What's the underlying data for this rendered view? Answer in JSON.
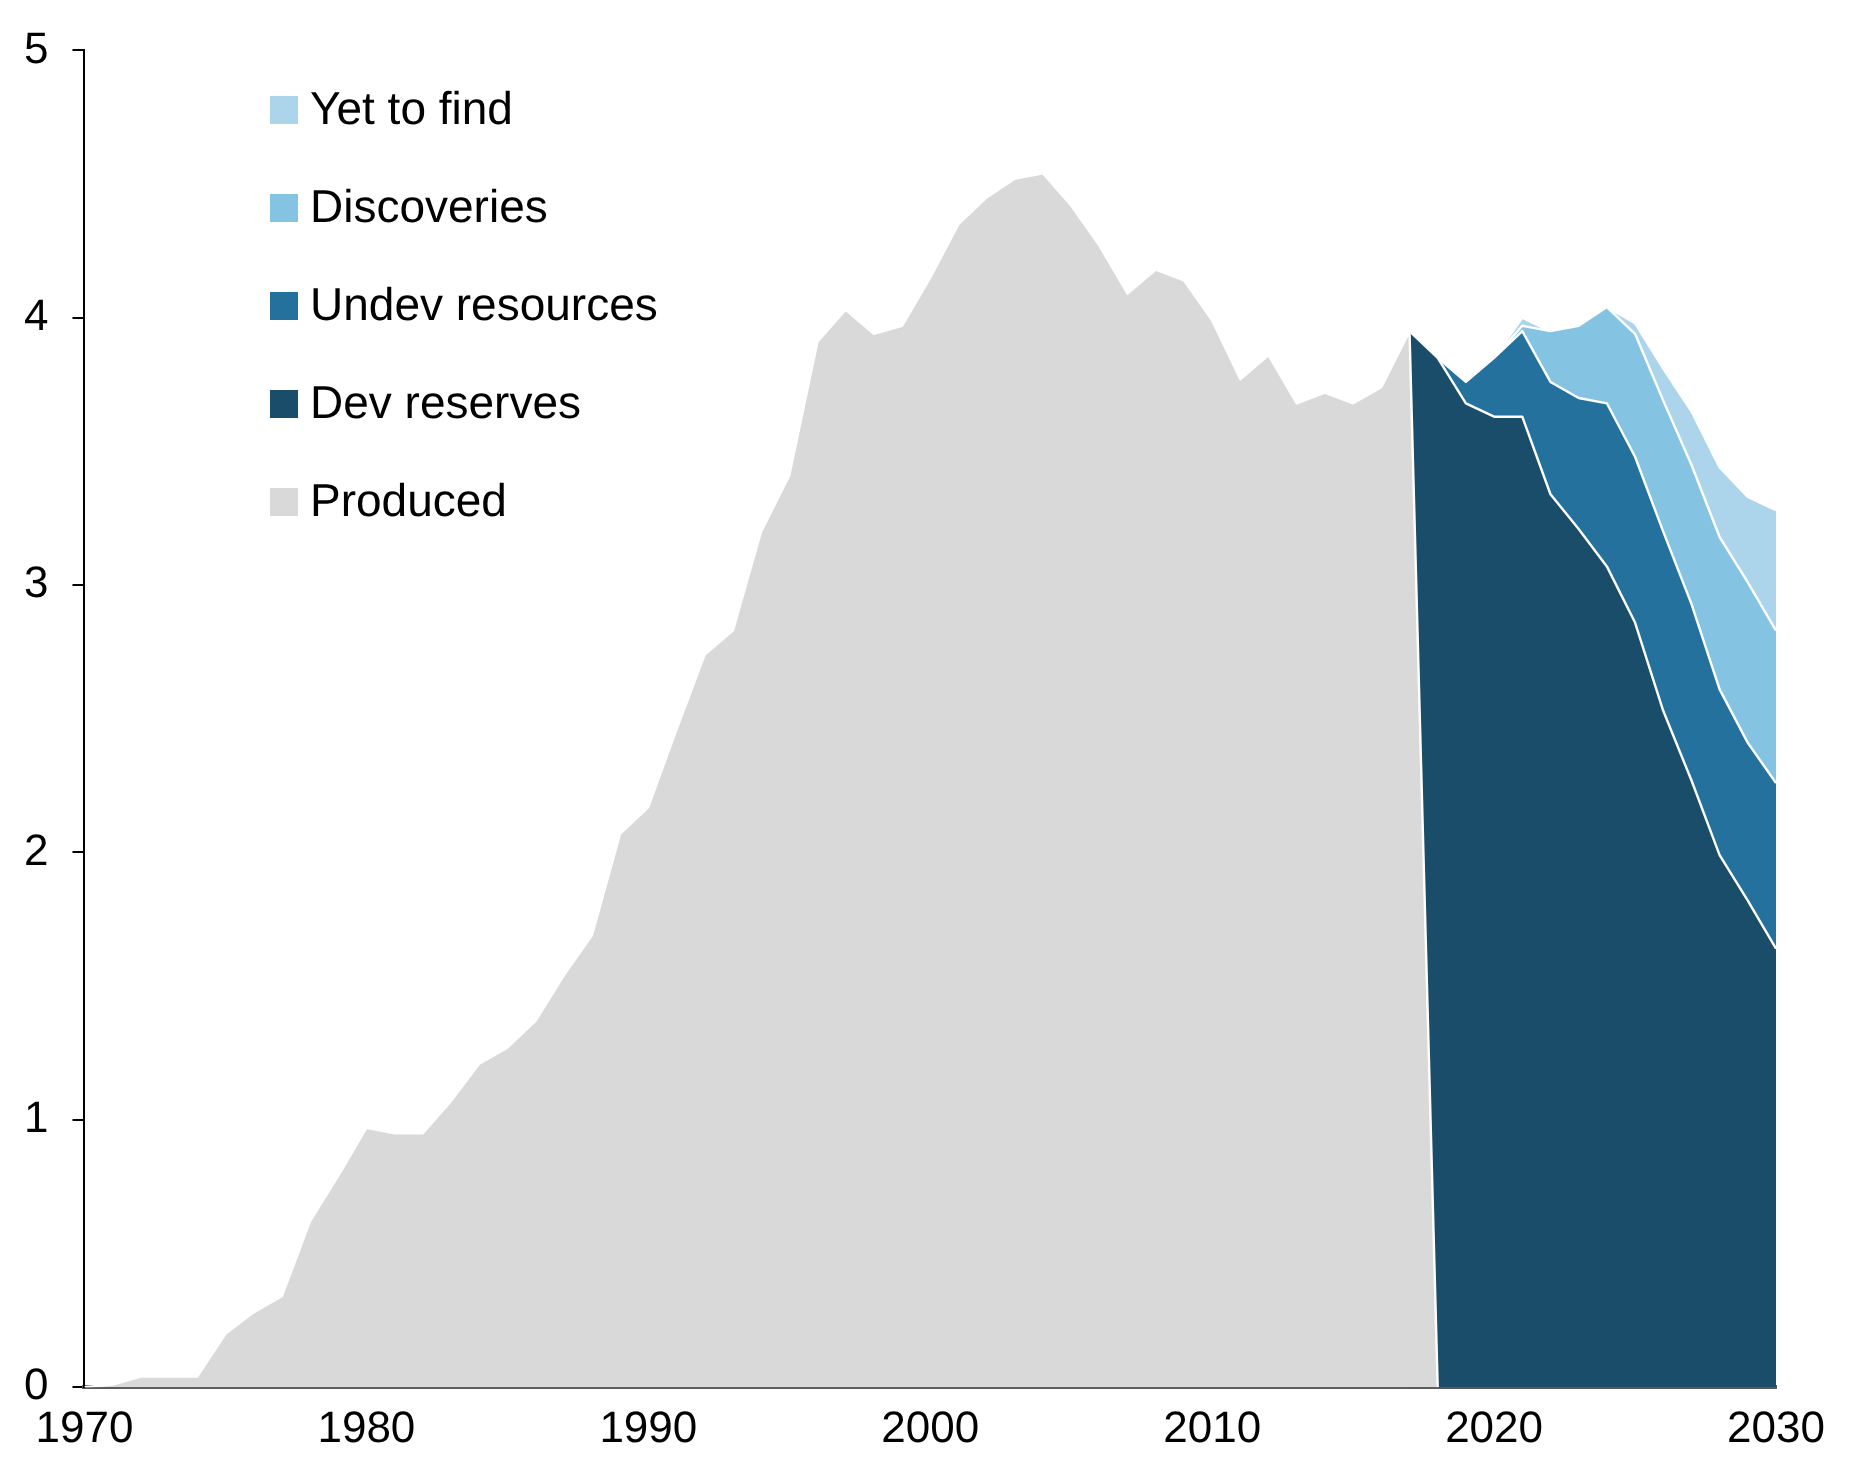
{
  "chart_data": {
    "type": "area",
    "stacked": true,
    "grid": false,
    "legend": "top left",
    "xlim": [
      1970,
      2030
    ],
    "xticks": [
      1970,
      1980,
      1990,
      2000,
      2010,
      2020,
      2030
    ],
    "ylim": [
      0,
      5
    ],
    "yticks": [
      0,
      1,
      2,
      3,
      4,
      5
    ],
    "x": [
      1970,
      1971,
      1972,
      1973,
      1974,
      1975,
      1976,
      1977,
      1978,
      1979,
      1980,
      1981,
      1982,
      1983,
      1984,
      1985,
      1986,
      1987,
      1988,
      1989,
      1990,
      1991,
      1992,
      1993,
      1994,
      1995,
      1996,
      1997,
      1998,
      1999,
      2000,
      2001,
      2002,
      2003,
      2004,
      2005,
      2006,
      2007,
      2008,
      2009,
      2010,
      2011,
      2012,
      2013,
      2014,
      2015,
      2016,
      2017,
      2018,
      2019,
      2020,
      2021,
      2022,
      2023,
      2024,
      2025,
      2026,
      2027,
      2028,
      2029,
      2030
    ],
    "series": [
      {
        "name": "Produced",
        "color": "#d9d9d9",
        "values": [
          0,
          0.01,
          0.04,
          0.04,
          0.04,
          0.2,
          0.28,
          0.34,
          0.62,
          0.79,
          0.97,
          0.95,
          0.95,
          1.07,
          1.21,
          1.27,
          1.37,
          1.54,
          1.69,
          2.07,
          2.17,
          2.46,
          2.74,
          2.83,
          3.2,
          3.41,
          3.91,
          4.03,
          3.94,
          3.97,
          4.15,
          4.35,
          4.45,
          4.52,
          4.54,
          4.42,
          4.27,
          4.09,
          4.18,
          4.14,
          3.99,
          3.77,
          3.86,
          3.68,
          3.72,
          3.68,
          3.74,
          3.95,
          0,
          null,
          null,
          null,
          null,
          null,
          null,
          null,
          null,
          null,
          null,
          null,
          null
        ]
      },
      {
        "name": "Dev reserves",
        "color": "#1a4d69",
        "values": [
          null,
          null,
          null,
          null,
          null,
          null,
          null,
          null,
          null,
          null,
          null,
          null,
          null,
          null,
          null,
          null,
          null,
          null,
          null,
          null,
          null,
          null,
          null,
          null,
          null,
          null,
          null,
          null,
          null,
          null,
          null,
          null,
          null,
          null,
          null,
          null,
          null,
          null,
          null,
          null,
          null,
          null,
          null,
          null,
          null,
          null,
          null,
          0,
          3.85,
          3.68,
          3.63,
          3.63,
          3.34,
          3.21,
          3.07,
          2.86,
          2.53,
          2.27,
          1.99,
          1.82,
          1.64
        ]
      },
      {
        "name": "Undev resources",
        "color": "#23719c",
        "values": [
          null,
          null,
          null,
          null,
          null,
          null,
          null,
          null,
          null,
          null,
          null,
          null,
          null,
          null,
          null,
          null,
          null,
          null,
          null,
          null,
          null,
          null,
          null,
          null,
          null,
          null,
          null,
          null,
          null,
          null,
          null,
          null,
          null,
          null,
          null,
          null,
          null,
          null,
          null,
          null,
          null,
          null,
          null,
          null,
          null,
          null,
          null,
          0,
          0,
          0.08,
          0.22,
          0.32,
          0.42,
          0.49,
          0.61,
          0.62,
          0.67,
          0.66,
          0.62,
          0.59,
          0.62
        ]
      },
      {
        "name": "Discoveries",
        "color": "#85c3e3",
        "values": [
          null,
          null,
          null,
          null,
          null,
          null,
          null,
          null,
          null,
          null,
          null,
          null,
          null,
          null,
          null,
          null,
          null,
          null,
          null,
          null,
          null,
          null,
          null,
          null,
          null,
          null,
          null,
          null,
          null,
          null,
          null,
          null,
          null,
          null,
          null,
          null,
          null,
          null,
          null,
          null,
          null,
          null,
          null,
          null,
          null,
          null,
          null,
          0,
          0,
          0,
          0,
          0.02,
          0.19,
          0.27,
          0.36,
          0.46,
          0.49,
          0.52,
          0.57,
          0.6,
          0.57
        ]
      },
      {
        "name": "Yet to find",
        "color": "#acd5ec",
        "values": [
          null,
          null,
          null,
          null,
          null,
          null,
          null,
          null,
          null,
          null,
          null,
          null,
          null,
          null,
          null,
          null,
          null,
          null,
          null,
          null,
          null,
          null,
          null,
          null,
          null,
          null,
          null,
          null,
          null,
          null,
          null,
          null,
          null,
          null,
          null,
          null,
          null,
          null,
          null,
          null,
          null,
          null,
          null,
          null,
          null,
          null,
          null,
          0,
          0,
          0,
          0,
          0.03,
          0,
          0,
          0,
          0.04,
          0.12,
          0.2,
          0.26,
          0.32,
          0.45
        ]
      }
    ]
  }
}
